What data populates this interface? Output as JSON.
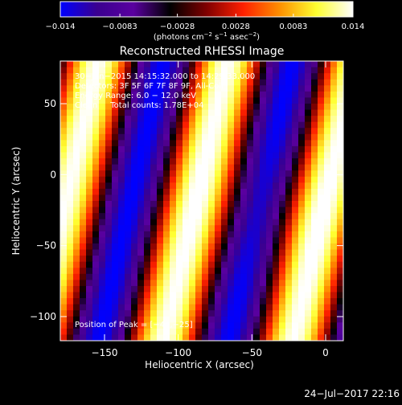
{
  "colorbar": {
    "ticks": [
      "−0.014",
      "−0.0083",
      "−0.0028",
      "0.0028",
      "0.0083",
      "0.014"
    ],
    "tick_values": [
      -0.014,
      -0.0083,
      -0.0028,
      0.0028,
      0.0083,
      0.014
    ],
    "range": [
      -0.014,
      0.014
    ],
    "label_main": "(photons cm",
    "label_sup1": "−2",
    "label_mid1": " s",
    "label_sup2": "−1",
    "label_mid2": " asec",
    "label_sup3": "−2",
    "label_end": ")",
    "colormap": [
      "#0000ff",
      "#3a0090",
      "#5a00a0",
      "#000000",
      "#800000",
      "#ff2000",
      "#ff9000",
      "#ffff30",
      "#ffffff"
    ]
  },
  "chart_data": {
    "type": "heatmap",
    "title": "Reconstructed RHESSI Image",
    "xlabel": "Heliocentric X (arcsec)",
    "ylabel": "Heliocentric Y (arcsec)",
    "xlim": [
      -180,
      12
    ],
    "ylim": [
      -117,
      80
    ],
    "x_ticks": [
      -150,
      -100,
      -50,
      0
    ],
    "y_ticks": [
      50,
      0,
      -50,
      -100
    ],
    "x_tick_labels": [
      "−150",
      "−100",
      "−50",
      "0"
    ],
    "y_tick_labels": [
      "50",
      "0",
      "−50",
      "−100"
    ],
    "annotations": [
      "30−Jan−2015 14:15:32.000 to 14:29:33.000",
      "Detectors: 3F 5F 6F 7F 8F 9F, All-Coll",
      "Energy Range: 6.0 − 12.0 keV",
      "Clean     Total counts: 1.78E+04"
    ],
    "peak_label": "Position of Peak = [−44,−25]",
    "peak_position": [
      -44,
      -25
    ],
    "fringe": {
      "period_arcsec": 88,
      "slope_x_per_y": 0.22,
      "bright_centers_x_at_y0": [
        -172,
        -84,
        4
      ],
      "dark_centers_x_at_y0": [
        -128,
        -40
      ],
      "amplitude_range": [
        -0.014,
        0.014
      ]
    }
  },
  "footer": {
    "date": "24−Jul−2017 22:16"
  }
}
